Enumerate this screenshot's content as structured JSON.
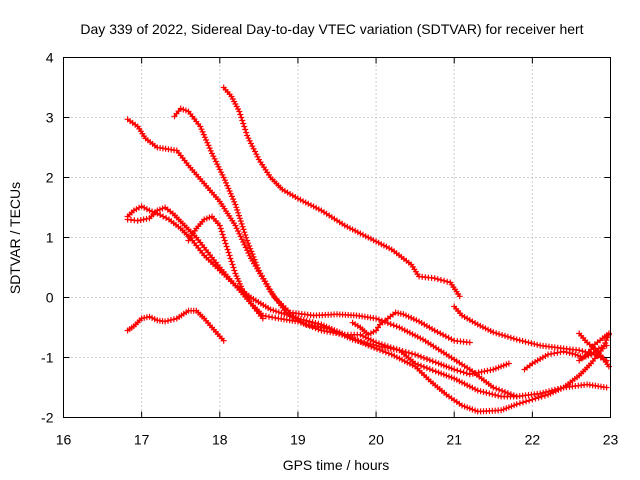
{
  "chart_data": {
    "type": "scatter",
    "title": "Day 339 of 2022, Sidereal Day-to-day VTEC variation (SDTVAR) for receiver hert",
    "xlabel": "GPS time / hours",
    "ylabel": "SDTVAR / TECUs",
    "xlim": [
      16,
      23
    ],
    "ylim": [
      -2,
      4
    ],
    "xticks": [
      16,
      17,
      18,
      19,
      20,
      21,
      22,
      23
    ],
    "yticks": [
      -2,
      -1,
      0,
      1,
      2,
      3,
      4
    ],
    "grid": true,
    "marker": "+",
    "color": "#ff0000",
    "series": [
      {
        "name": "s1",
        "points": [
          [
            16.82,
            2.97
          ],
          [
            16.95,
            2.85
          ],
          [
            17.05,
            2.65
          ],
          [
            17.2,
            2.5
          ],
          [
            17.45,
            2.45
          ],
          [
            17.6,
            2.2
          ],
          [
            17.8,
            1.9
          ],
          [
            18.0,
            1.6
          ],
          [
            18.2,
            1.2
          ],
          [
            18.4,
            0.65
          ],
          [
            18.65,
            0.1
          ],
          [
            18.85,
            -0.25
          ],
          [
            19.1,
            -0.45
          ],
          [
            19.4,
            -0.52
          ],
          [
            19.7,
            -0.7
          ],
          [
            20.0,
            -0.8
          ],
          [
            20.3,
            -0.88
          ],
          [
            20.5,
            -0.95
          ],
          [
            20.8,
            -1.1
          ],
          [
            21.0,
            -1.2
          ],
          [
            21.2,
            -1.28
          ],
          [
            21.5,
            -1.2
          ],
          [
            21.7,
            -1.1
          ]
        ]
      },
      {
        "name": "s2",
        "points": [
          [
            17.42,
            3.02
          ],
          [
            17.5,
            3.15
          ],
          [
            17.6,
            3.1
          ],
          [
            17.75,
            2.85
          ],
          [
            17.9,
            2.4
          ],
          [
            18.05,
            2.0
          ],
          [
            18.2,
            1.55
          ],
          [
            18.35,
            0.95
          ],
          [
            18.5,
            0.45
          ],
          [
            18.7,
            0.0
          ],
          [
            18.9,
            -0.25
          ],
          [
            19.2,
            -0.3
          ],
          [
            19.5,
            -0.28
          ],
          [
            19.75,
            -0.3
          ],
          [
            20.0,
            -0.35
          ],
          [
            20.3,
            -0.5
          ],
          [
            20.6,
            -0.7
          ],
          [
            20.9,
            -0.95
          ],
          [
            21.2,
            -1.2
          ],
          [
            21.5,
            -1.5
          ],
          [
            21.8,
            -1.65
          ],
          [
            22.1,
            -1.6
          ],
          [
            22.4,
            -1.5
          ],
          [
            22.7,
            -1.45
          ],
          [
            22.95,
            -1.5
          ]
        ]
      },
      {
        "name": "s3",
        "points": [
          [
            18.05,
            3.5
          ],
          [
            18.15,
            3.35
          ],
          [
            18.25,
            3.1
          ],
          [
            18.35,
            2.7
          ],
          [
            18.5,
            2.3
          ],
          [
            18.65,
            2.0
          ],
          [
            18.8,
            1.8
          ],
          [
            19.0,
            1.65
          ],
          [
            19.3,
            1.45
          ],
          [
            19.6,
            1.2
          ],
          [
            19.9,
            1.0
          ],
          [
            20.2,
            0.8
          ],
          [
            20.45,
            0.55
          ],
          [
            20.55,
            0.35
          ],
          [
            20.75,
            0.32
          ],
          [
            20.95,
            0.25
          ],
          [
            21.07,
            0.02
          ]
        ]
      },
      {
        "name": "s4",
        "points": [
          [
            16.82,
            1.35
          ],
          [
            16.9,
            1.45
          ],
          [
            17.0,
            1.52
          ],
          [
            17.1,
            1.45
          ],
          [
            17.2,
            1.4
          ],
          [
            17.35,
            1.3
          ],
          [
            17.5,
            1.15
          ],
          [
            17.65,
            0.95
          ],
          [
            17.8,
            0.7
          ],
          [
            18.0,
            0.45
          ],
          [
            18.2,
            0.2
          ],
          [
            18.4,
            -0.1
          ],
          [
            18.55,
            -0.35
          ]
        ]
      },
      {
        "name": "s5",
        "points": [
          [
            16.82,
            1.3
          ],
          [
            16.95,
            1.28
          ],
          [
            17.1,
            1.32
          ],
          [
            17.2,
            1.45
          ],
          [
            17.3,
            1.5
          ],
          [
            17.4,
            1.4
          ],
          [
            17.55,
            1.2
          ],
          [
            17.7,
            1.0
          ],
          [
            17.85,
            0.75
          ],
          [
            18.0,
            0.5
          ],
          [
            18.2,
            0.2
          ],
          [
            18.4,
            0.0
          ],
          [
            18.65,
            -0.2
          ],
          [
            19.0,
            -0.35
          ],
          [
            19.3,
            -0.45
          ],
          [
            19.6,
            -0.62
          ],
          [
            19.9,
            -0.8
          ],
          [
            20.2,
            -0.95
          ],
          [
            20.5,
            -1.15
          ],
          [
            20.7,
            -1.4
          ],
          [
            20.9,
            -1.62
          ],
          [
            21.1,
            -1.8
          ],
          [
            21.3,
            -1.9
          ],
          [
            21.6,
            -1.88
          ],
          [
            21.8,
            -1.78
          ],
          [
            22.0,
            -1.7
          ],
          [
            22.2,
            -1.62
          ],
          [
            22.4,
            -1.5
          ],
          [
            22.6,
            -1.3
          ],
          [
            22.75,
            -1.1
          ],
          [
            22.9,
            -0.85
          ],
          [
            22.98,
            -0.62
          ]
        ]
      },
      {
        "name": "s6",
        "points": [
          [
            17.6,
            0.95
          ],
          [
            17.7,
            1.15
          ],
          [
            17.8,
            1.3
          ],
          [
            17.9,
            1.35
          ],
          [
            18.0,
            1.2
          ],
          [
            18.1,
            0.8
          ],
          [
            18.2,
            0.4
          ],
          [
            18.3,
            0.1
          ],
          [
            18.4,
            -0.1
          ],
          [
            18.55,
            -0.3
          ],
          [
            18.75,
            -0.35
          ],
          [
            19.0,
            -0.4
          ],
          [
            19.3,
            -0.55
          ],
          [
            19.6,
            -0.62
          ],
          [
            19.8,
            -0.62
          ],
          [
            20.0,
            -0.75
          ],
          [
            20.3,
            -0.88
          ],
          [
            20.5,
            -1.1
          ],
          [
            20.8,
            -1.25
          ],
          [
            21.0,
            -1.35
          ],
          [
            21.3,
            -1.55
          ],
          [
            21.6,
            -1.65
          ],
          [
            21.8,
            -1.65
          ]
        ]
      },
      {
        "name": "s7",
        "points": [
          [
            16.82,
            -0.55
          ],
          [
            16.9,
            -0.48
          ],
          [
            17.0,
            -0.35
          ],
          [
            17.1,
            -0.32
          ],
          [
            17.2,
            -0.38
          ],
          [
            17.3,
            -0.4
          ],
          [
            17.45,
            -0.35
          ],
          [
            17.6,
            -0.22
          ],
          [
            17.7,
            -0.22
          ],
          [
            17.8,
            -0.35
          ],
          [
            17.9,
            -0.5
          ],
          [
            18.05,
            -0.72
          ]
        ]
      },
      {
        "name": "s8",
        "points": [
          [
            19.7,
            -0.42
          ],
          [
            19.8,
            -0.5
          ],
          [
            19.9,
            -0.62
          ],
          [
            20.0,
            -0.55
          ],
          [
            20.05,
            -0.45
          ],
          [
            20.15,
            -0.35
          ],
          [
            20.25,
            -0.25
          ],
          [
            20.35,
            -0.28
          ],
          [
            20.55,
            -0.4
          ],
          [
            20.75,
            -0.55
          ],
          [
            21.0,
            -0.72
          ],
          [
            21.2,
            -0.75
          ]
        ]
      },
      {
        "name": "s9",
        "points": [
          [
            21.0,
            -0.15
          ],
          [
            21.1,
            -0.3
          ],
          [
            21.3,
            -0.45
          ],
          [
            21.5,
            -0.58
          ],
          [
            21.8,
            -0.7
          ],
          [
            22.1,
            -0.8
          ],
          [
            22.4,
            -0.85
          ],
          [
            22.6,
            -0.88
          ],
          [
            22.8,
            -0.95
          ],
          [
            22.95,
            -1.05
          ]
        ]
      },
      {
        "name": "s10",
        "points": [
          [
            21.9,
            -1.2
          ],
          [
            22.0,
            -1.1
          ],
          [
            22.2,
            -0.95
          ],
          [
            22.4,
            -0.9
          ],
          [
            22.55,
            -0.95
          ],
          [
            22.65,
            -1.0
          ],
          [
            22.75,
            -0.95
          ],
          [
            22.85,
            -0.85
          ],
          [
            22.95,
            -0.8
          ]
        ]
      },
      {
        "name": "s11",
        "points": [
          [
            22.6,
            -0.6
          ],
          [
            22.7,
            -0.75
          ],
          [
            22.8,
            -0.85
          ],
          [
            22.9,
            -1.0
          ],
          [
            22.98,
            -1.15
          ]
        ]
      },
      {
        "name": "s12",
        "points": [
          [
            22.6,
            -1.05
          ],
          [
            22.7,
            -0.95
          ],
          [
            22.8,
            -0.78
          ],
          [
            22.9,
            -0.68
          ],
          [
            22.98,
            -0.6
          ]
        ]
      }
    ]
  }
}
